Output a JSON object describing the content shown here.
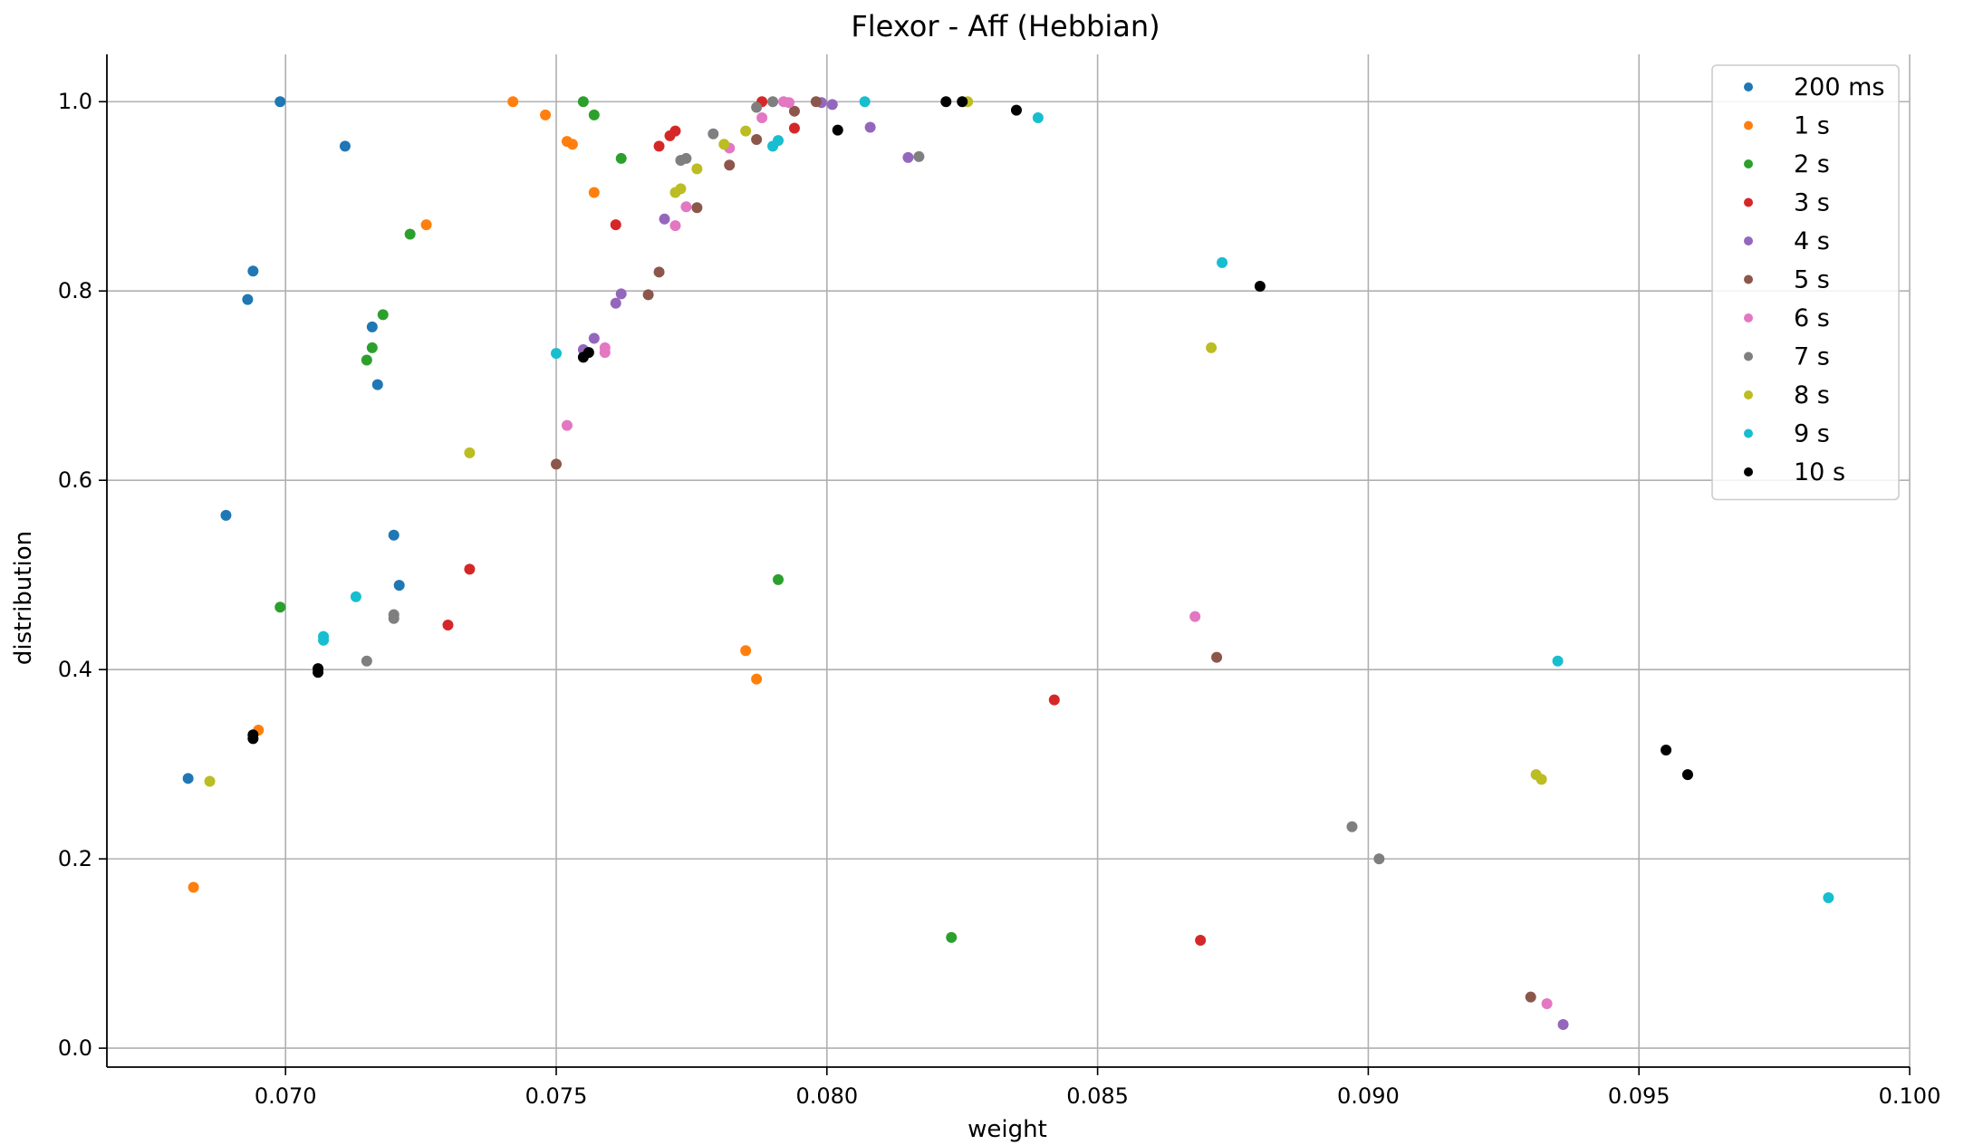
{
  "chart_data": {
    "type": "scatter",
    "title": "Flexor - Aff (Hebbian)",
    "xlabel": "weight",
    "ylabel": "distribution",
    "xlim": [
      0.0667,
      0.1
    ],
    "ylim": [
      -0.02,
      1.05
    ],
    "xticks": [
      "0.070",
      "0.075",
      "0.080",
      "0.085",
      "0.090",
      "0.095",
      "0.100"
    ],
    "yticks": [
      "0.0",
      "0.2",
      "0.4",
      "0.6",
      "0.8",
      "1.0"
    ],
    "grid": true,
    "legend_position": "top-right",
    "series": [
      {
        "name": "200 ms",
        "color": "#1f77b4",
        "points": [
          [
            0.0699,
            1.0
          ],
          [
            0.0711,
            0.953
          ],
          [
            0.0694,
            0.821
          ],
          [
            0.0693,
            0.791
          ],
          [
            0.0716,
            0.762
          ],
          [
            0.0717,
            0.701
          ],
          [
            0.0689,
            0.563
          ],
          [
            0.072,
            0.542
          ],
          [
            0.0721,
            0.489
          ],
          [
            0.0682,
            0.285
          ]
        ]
      },
      {
        "name": "1 s",
        "color": "#ff7f0e",
        "points": [
          [
            0.0742,
            1.0
          ],
          [
            0.0748,
            0.986
          ],
          [
            0.0752,
            0.958
          ],
          [
            0.0753,
            0.955
          ],
          [
            0.0757,
            0.904
          ],
          [
            0.0726,
            0.87
          ],
          [
            0.0785,
            0.42
          ],
          [
            0.0787,
            0.39
          ],
          [
            0.0695,
            0.336
          ],
          [
            0.0683,
            0.17
          ]
        ]
      },
      {
        "name": "2 s",
        "color": "#2ca02c",
        "points": [
          [
            0.0755,
            1.0
          ],
          [
            0.0757,
            0.986
          ],
          [
            0.0762,
            0.94
          ],
          [
            0.0723,
            0.86
          ],
          [
            0.0718,
            0.775
          ],
          [
            0.0716,
            0.74
          ],
          [
            0.0715,
            0.727
          ],
          [
            0.0791,
            0.495
          ],
          [
            0.0699,
            0.466
          ],
          [
            0.0823,
            0.117
          ]
        ]
      },
      {
        "name": "3 s",
        "color": "#d62728",
        "points": [
          [
            0.0788,
            1.0
          ],
          [
            0.0772,
            0.969
          ],
          [
            0.0771,
            0.964
          ],
          [
            0.0794,
            0.972
          ],
          [
            0.0769,
            0.953
          ],
          [
            0.0761,
            0.87
          ],
          [
            0.0734,
            0.506
          ],
          [
            0.073,
            0.447
          ],
          [
            0.0842,
            0.368
          ],
          [
            0.0869,
            0.114
          ]
        ]
      },
      {
        "name": "4 s",
        "color": "#9467bd",
        "points": [
          [
            0.0799,
            0.999
          ],
          [
            0.0801,
            0.997
          ],
          [
            0.0808,
            0.973
          ],
          [
            0.0815,
            0.941
          ],
          [
            0.077,
            0.876
          ],
          [
            0.0762,
            0.797
          ],
          [
            0.0761,
            0.787
          ],
          [
            0.0757,
            0.75
          ],
          [
            0.0755,
            0.738
          ],
          [
            0.0936,
            0.025
          ]
        ]
      },
      {
        "name": "5 s",
        "color": "#8c564b",
        "points": [
          [
            0.0798,
            1.0
          ],
          [
            0.0794,
            0.99
          ],
          [
            0.0787,
            0.96
          ],
          [
            0.0782,
            0.933
          ],
          [
            0.0776,
            0.888
          ],
          [
            0.0769,
            0.82
          ],
          [
            0.0767,
            0.796
          ],
          [
            0.075,
            0.617
          ],
          [
            0.0872,
            0.413
          ],
          [
            0.093,
            0.054
          ]
        ]
      },
      {
        "name": "6 s",
        "color": "#e377c2",
        "points": [
          [
            0.0792,
            1.0
          ],
          [
            0.0793,
            0.999
          ],
          [
            0.0788,
            0.983
          ],
          [
            0.0782,
            0.951
          ],
          [
            0.0774,
            0.889
          ],
          [
            0.0772,
            0.869
          ],
          [
            0.0759,
            0.74
          ],
          [
            0.0759,
            0.735
          ],
          [
            0.0752,
            0.658
          ],
          [
            0.0868,
            0.456
          ],
          [
            0.0933,
            0.047
          ]
        ]
      },
      {
        "name": "7 s",
        "color": "#7f7f7f",
        "points": [
          [
            0.079,
            1.0
          ],
          [
            0.0787,
            0.994
          ],
          [
            0.0779,
            0.966
          ],
          [
            0.0774,
            0.94
          ],
          [
            0.0773,
            0.938
          ],
          [
            0.0817,
            0.942
          ],
          [
            0.072,
            0.458
          ],
          [
            0.072,
            0.454
          ],
          [
            0.0715,
            0.409
          ],
          [
            0.0897,
            0.234
          ],
          [
            0.0902,
            0.2
          ]
        ]
      },
      {
        "name": "8 s",
        "color": "#bcbd22",
        "points": [
          [
            0.0826,
            1.0
          ],
          [
            0.0785,
            0.969
          ],
          [
            0.0781,
            0.955
          ],
          [
            0.0776,
            0.929
          ],
          [
            0.0773,
            0.908
          ],
          [
            0.0772,
            0.904
          ],
          [
            0.0871,
            0.74
          ],
          [
            0.0734,
            0.629
          ],
          [
            0.0931,
            0.289
          ],
          [
            0.0932,
            0.284
          ],
          [
            0.0686,
            0.282
          ]
        ]
      },
      {
        "name": "9 s",
        "color": "#17becf",
        "points": [
          [
            0.0807,
            1.0
          ],
          [
            0.0839,
            0.983
          ],
          [
            0.0791,
            0.959
          ],
          [
            0.079,
            0.953
          ],
          [
            0.0873,
            0.83
          ],
          [
            0.075,
            0.734
          ],
          [
            0.0713,
            0.477
          ],
          [
            0.0707,
            0.435
          ],
          [
            0.0707,
            0.431
          ],
          [
            0.0935,
            0.409
          ],
          [
            0.0985,
            0.159
          ]
        ]
      },
      {
        "name": "10 s",
        "color": "#000000",
        "points": [
          [
            0.0822,
            1.0
          ],
          [
            0.0825,
            1.0
          ],
          [
            0.0835,
            0.991
          ],
          [
            0.0802,
            0.97
          ],
          [
            0.088,
            0.805
          ],
          [
            0.0756,
            0.735
          ],
          [
            0.0755,
            0.73
          ],
          [
            0.0706,
            0.401
          ],
          [
            0.0706,
            0.397
          ],
          [
            0.0694,
            0.331
          ],
          [
            0.0694,
            0.327
          ],
          [
            0.0955,
            0.315
          ],
          [
            0.0959,
            0.289
          ]
        ]
      }
    ]
  }
}
